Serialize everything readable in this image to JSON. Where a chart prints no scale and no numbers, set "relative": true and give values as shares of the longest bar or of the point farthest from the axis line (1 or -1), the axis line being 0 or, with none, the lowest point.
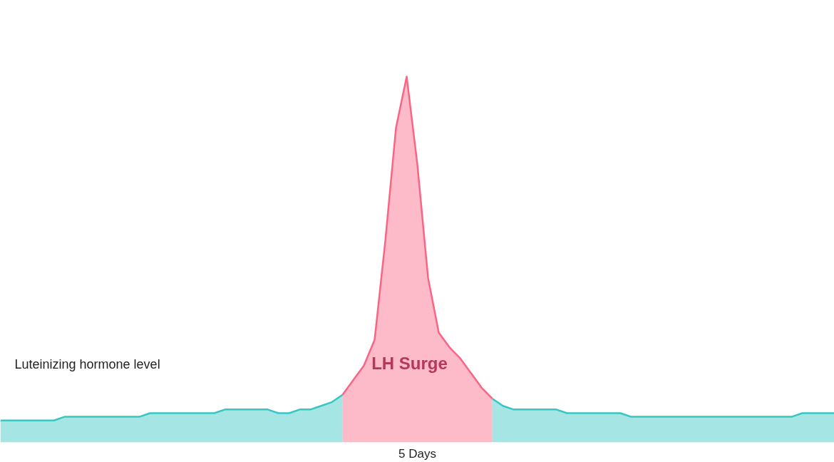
{
  "chart_data": {
    "type": "area",
    "relative": true,
    "xlabel": "5 Days",
    "categories": [
      null,
      null,
      null,
      null,
      null,
      null,
      null,
      null,
      null,
      null,
      null,
      null,
      null,
      null,
      null,
      null,
      null,
      null,
      null,
      null,
      null,
      null,
      null,
      null,
      null,
      null,
      null,
      null,
      null,
      null,
      null,
      null,
      null,
      null,
      null,
      null,
      null,
      null,
      null,
      null,
      null,
      null,
      null,
      null,
      null,
      null,
      null,
      null,
      null,
      null,
      null,
      null,
      null,
      null,
      null,
      null,
      null,
      null,
      null,
      null,
      null,
      null,
      null,
      null,
      null,
      null,
      null,
      null,
      null,
      null,
      null,
      null,
      null,
      null,
      null,
      null,
      null,
      null,
      null
    ],
    "series": [
      {
        "color": "#38c6c3",
        "values": [
          0.06,
          0.06,
          0.06,
          0.06,
          0.06,
          0.06,
          0.07,
          0.07,
          0.07,
          0.07,
          0.07,
          0.07,
          0.07,
          0.07,
          0.08,
          0.08,
          0.08,
          0.08,
          0.08,
          0.08,
          0.08,
          0.09,
          0.09,
          0.09,
          0.09,
          0.09,
          0.08,
          0.08,
          0.09,
          0.09,
          0.1,
          0.11,
          0.13,
          null,
          null,
          null,
          null,
          null,
          null,
          null,
          null,
          null,
          null,
          null,
          null,
          null,
          0.12,
          0.1,
          0.09,
          0.09,
          0.09,
          0.09,
          0.09,
          0.08,
          0.08,
          0.08,
          0.08,
          0.08,
          0.08,
          0.07,
          0.07,
          0.07,
          0.07,
          0.07,
          0.07,
          0.07,
          0.07,
          0.07,
          0.07,
          0.07,
          0.07,
          0.07,
          0.07,
          0.07,
          0.07,
          0.08,
          0.08,
          0.08,
          0.08
        ]
      },
      {
        "color": "#fa6584",
        "values": [
          null,
          null,
          null,
          null,
          null,
          null,
          null,
          null,
          null,
          null,
          null,
          null,
          null,
          null,
          null,
          null,
          null,
          null,
          null,
          null,
          null,
          null,
          null,
          null,
          null,
          null,
          null,
          null,
          null,
          null,
          null,
          null,
          0.13,
          0.17,
          0.21,
          0.28,
          0.55,
          0.86,
          1.0,
          0.76,
          0.45,
          0.3,
          0.26,
          0.23,
          0.19,
          0.15,
          0.12,
          null,
          null,
          null,
          null,
          null,
          null,
          null,
          null,
          null,
          null,
          null,
          null,
          null,
          null,
          null,
          null,
          null,
          null,
          null,
          null,
          null,
          null,
          null,
          null,
          null,
          null,
          null,
          null,
          null,
          null,
          null,
          null
        ]
      }
    ],
    "annotations": [
      "Luteinizing hormone level",
      "LH Surge"
    ]
  }
}
